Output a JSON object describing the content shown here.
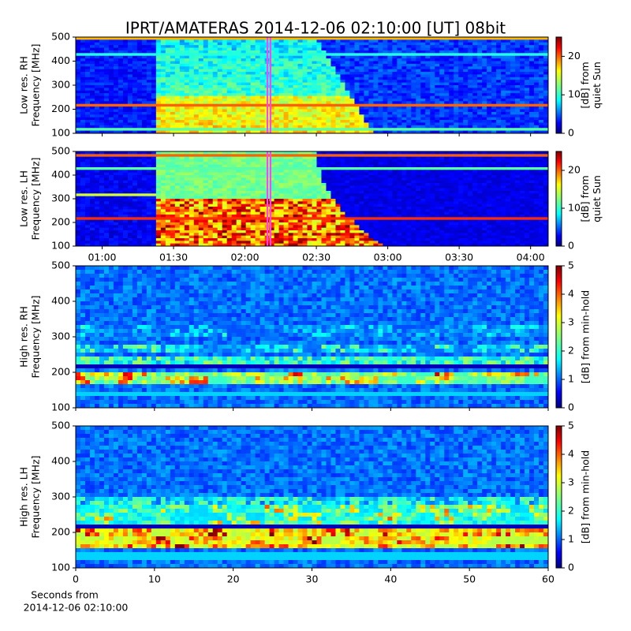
{
  "title": "IPRT/AMATERAS 2014-12-06 02:10:00 [UT]   08bit",
  "chart_data": [
    {
      "type": "spectrogram",
      "colormap": "jet",
      "ylabel": [
        "Low res. RH",
        "Frequency [MHz]"
      ],
      "xlim": [
        48.9,
        247.4
      ],
      "xticks": [
        60,
        90,
        120,
        150,
        180,
        210,
        240
      ],
      "show_xtick_labels": false,
      "ylim": [
        100,
        500
      ],
      "yticks": [
        100,
        200,
        300,
        400,
        500
      ],
      "colorbar": {
        "label": [
          "[dB] from",
          "quiet Sun"
        ],
        "lim": [
          0,
          25
        ],
        "ticks": [
          0,
          10,
          20
        ]
      }
    },
    {
      "type": "spectrogram",
      "colormap": "jet",
      "ylabel": [
        "Low res. LH",
        "Frequency [MHz]"
      ],
      "xlim": [
        48.9,
        247.4
      ],
      "xticks": [
        {
          "value": 60,
          "label": "01:00"
        },
        {
          "value": 90,
          "label": "01:30"
        },
        {
          "value": 120,
          "label": "02:00"
        },
        {
          "value": 150,
          "label": "02:30"
        },
        {
          "value": 180,
          "label": "03:00"
        },
        {
          "value": 210,
          "label": "03:30"
        },
        {
          "value": 240,
          "label": "04:00"
        }
      ],
      "show_xtick_labels": true,
      "ylim": [
        100,
        500
      ],
      "yticks": [
        100,
        200,
        300,
        400,
        500
      ],
      "colorbar": {
        "label": [
          "[dB] from",
          "quiet Sun"
        ],
        "lim": [
          0,
          25
        ],
        "ticks": [
          0,
          10,
          20
        ]
      }
    },
    {
      "type": "spectrogram",
      "colormap": "jet",
      "ylabel": [
        "High res. RH",
        "Frequency [MHz]"
      ],
      "xlim": [
        0,
        60
      ],
      "xticks": [
        0,
        10,
        20,
        30,
        40,
        50,
        60
      ],
      "show_xtick_labels": false,
      "ylim": [
        100,
        500
      ],
      "yticks": [
        100,
        200,
        300,
        400,
        500
      ],
      "colorbar": {
        "label": [
          "[dB] from min-hold"
        ],
        "lim": [
          0,
          5
        ],
        "ticks": [
          0,
          1,
          2,
          3,
          4,
          5
        ]
      }
    },
    {
      "type": "spectrogram",
      "colormap": "jet",
      "ylabel": [
        "High res. LH",
        "Frequency [MHz]"
      ],
      "xlabel": [
        "Seconds from",
        "2014-12-06 02:10:00"
      ],
      "xlim": [
        0,
        60
      ],
      "xticks": [
        0,
        10,
        20,
        30,
        40,
        50,
        60
      ],
      "show_xtick_labels": true,
      "ylim": [
        100,
        500
      ],
      "yticks": [
        100,
        200,
        300,
        400,
        500
      ],
      "colorbar": {
        "label": [
          "[dB] from min-hold"
        ],
        "lim": [
          0,
          5
        ],
        "ticks": [
          0,
          1,
          2,
          3,
          4,
          5
        ]
      }
    }
  ]
}
